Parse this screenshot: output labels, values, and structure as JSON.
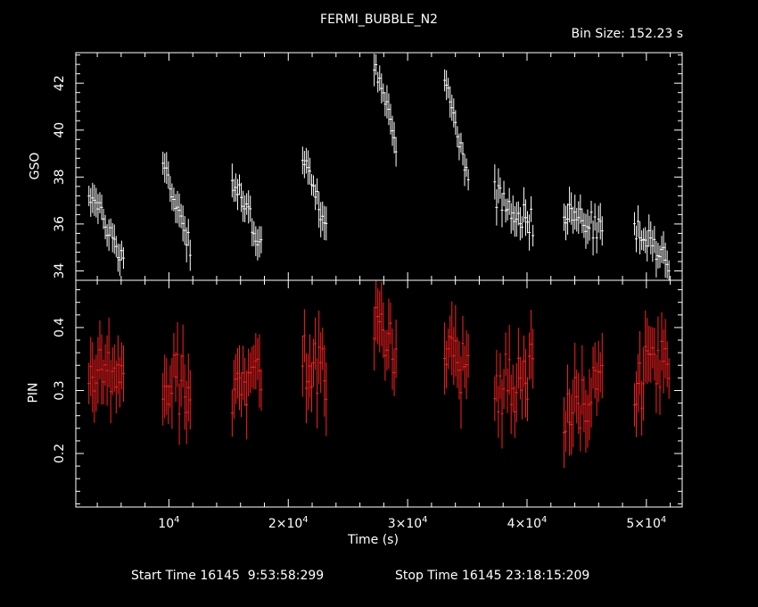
{
  "header": {
    "title": "FERMI_BUBBLE_N2",
    "bin_size": "Bin Size: 152.23 s"
  },
  "footer": {
    "start_time": "Start Time 16145  9:53:58:299",
    "stop_time": "Stop Time 16145 23:18:15:209"
  },
  "colors": {
    "background": "#000000",
    "axes": "#ffffff",
    "gso": "#ffffff",
    "pin": "#ff2020"
  },
  "chart_data": [
    {
      "type": "scatter",
      "panel": "GSO",
      "ylabel": "GSO",
      "xlabel": "",
      "xlim": [
        2200,
        53000
      ],
      "ylim": [
        33.6,
        43.3
      ],
      "yticks": [
        "34",
        "36",
        "38",
        "40",
        "42"
      ],
      "ytick_values": [
        34,
        36,
        38,
        40,
        42
      ],
      "grid": false,
      "segments": [
        {
          "t0": 3300,
          "t1": 6200,
          "y0": 37.4,
          "y1": 34.5,
          "noise": 0.45,
          "err": 0.55
        },
        {
          "t0": 9500,
          "t1": 11800,
          "y0": 38.6,
          "y1": 35.1,
          "noise": 0.5,
          "err": 0.6
        },
        {
          "t0": 15300,
          "t1": 17800,
          "y0": 37.9,
          "y1": 35.2,
          "noise": 0.5,
          "err": 0.6
        },
        {
          "t0": 21200,
          "t1": 23300,
          "y0": 38.8,
          "y1": 35.9,
          "noise": 0.45,
          "err": 0.6
        },
        {
          "t0": 27200,
          "t1": 29100,
          "y0": 42.9,
          "y1": 39.4,
          "noise": 0.35,
          "err": 0.55
        },
        {
          "t0": 33100,
          "t1": 35200,
          "y0": 42.2,
          "y1": 38.0,
          "noise": 0.35,
          "err": 0.55
        },
        {
          "t0": 37300,
          "t1": 40500,
          "y0": 37.3,
          "y1": 36.0,
          "noise": 0.6,
          "err": 0.6
        },
        {
          "t0": 43100,
          "t1": 46300,
          "y0": 36.6,
          "y1": 35.7,
          "noise": 0.55,
          "err": 0.6
        },
        {
          "t0": 49000,
          "t1": 51900,
          "y0": 35.8,
          "y1": 34.5,
          "noise": 0.5,
          "err": 0.6
        }
      ]
    },
    {
      "type": "scatter",
      "panel": "PIN",
      "ylabel": "PIN",
      "xlabel": "Time (s)",
      "xlim": [
        2200,
        53000
      ],
      "ylim": [
        0.115,
        0.475
      ],
      "yticks": [
        "0.2",
        "0.3",
        "0.4"
      ],
      "ytick_values": [
        0.2,
        0.3,
        0.4
      ],
      "grid": false,
      "segments": [
        {
          "t0": 3300,
          "t1": 6200,
          "y0": 0.31,
          "y1": 0.35,
          "noise": 0.045,
          "err": 0.045
        },
        {
          "t0": 9500,
          "t1": 11800,
          "y0": 0.33,
          "y1": 0.3,
          "noise": 0.05,
          "err": 0.045
        },
        {
          "t0": 15300,
          "t1": 17800,
          "y0": 0.29,
          "y1": 0.33,
          "noise": 0.04,
          "err": 0.045
        },
        {
          "t0": 21200,
          "t1": 23300,
          "y0": 0.35,
          "y1": 0.32,
          "noise": 0.045,
          "err": 0.045
        },
        {
          "t0": 27200,
          "t1": 29100,
          "y0": 0.4,
          "y1": 0.36,
          "noise": 0.04,
          "err": 0.045
        },
        {
          "t0": 33100,
          "t1": 35200,
          "y0": 0.38,
          "y1": 0.32,
          "noise": 0.045,
          "err": 0.045
        },
        {
          "t0": 37300,
          "t1": 40500,
          "y0": 0.3,
          "y1": 0.33,
          "noise": 0.05,
          "err": 0.045
        },
        {
          "t0": 43100,
          "t1": 46300,
          "y0": 0.27,
          "y1": 0.3,
          "noise": 0.045,
          "err": 0.045
        },
        {
          "t0": 49000,
          "t1": 51900,
          "y0": 0.31,
          "y1": 0.35,
          "noise": 0.05,
          "err": 0.045
        }
      ],
      "xticks": [
        {
          "value": 10000,
          "mantissa": "",
          "exponent": "4"
        },
        {
          "value": 20000,
          "mantissa": "2×",
          "exponent": "4"
        },
        {
          "value": 30000,
          "mantissa": "3×",
          "exponent": "4"
        },
        {
          "value": 40000,
          "mantissa": "4×",
          "exponent": "4"
        },
        {
          "value": 50000,
          "mantissa": "5×",
          "exponent": "4"
        }
      ]
    }
  ]
}
